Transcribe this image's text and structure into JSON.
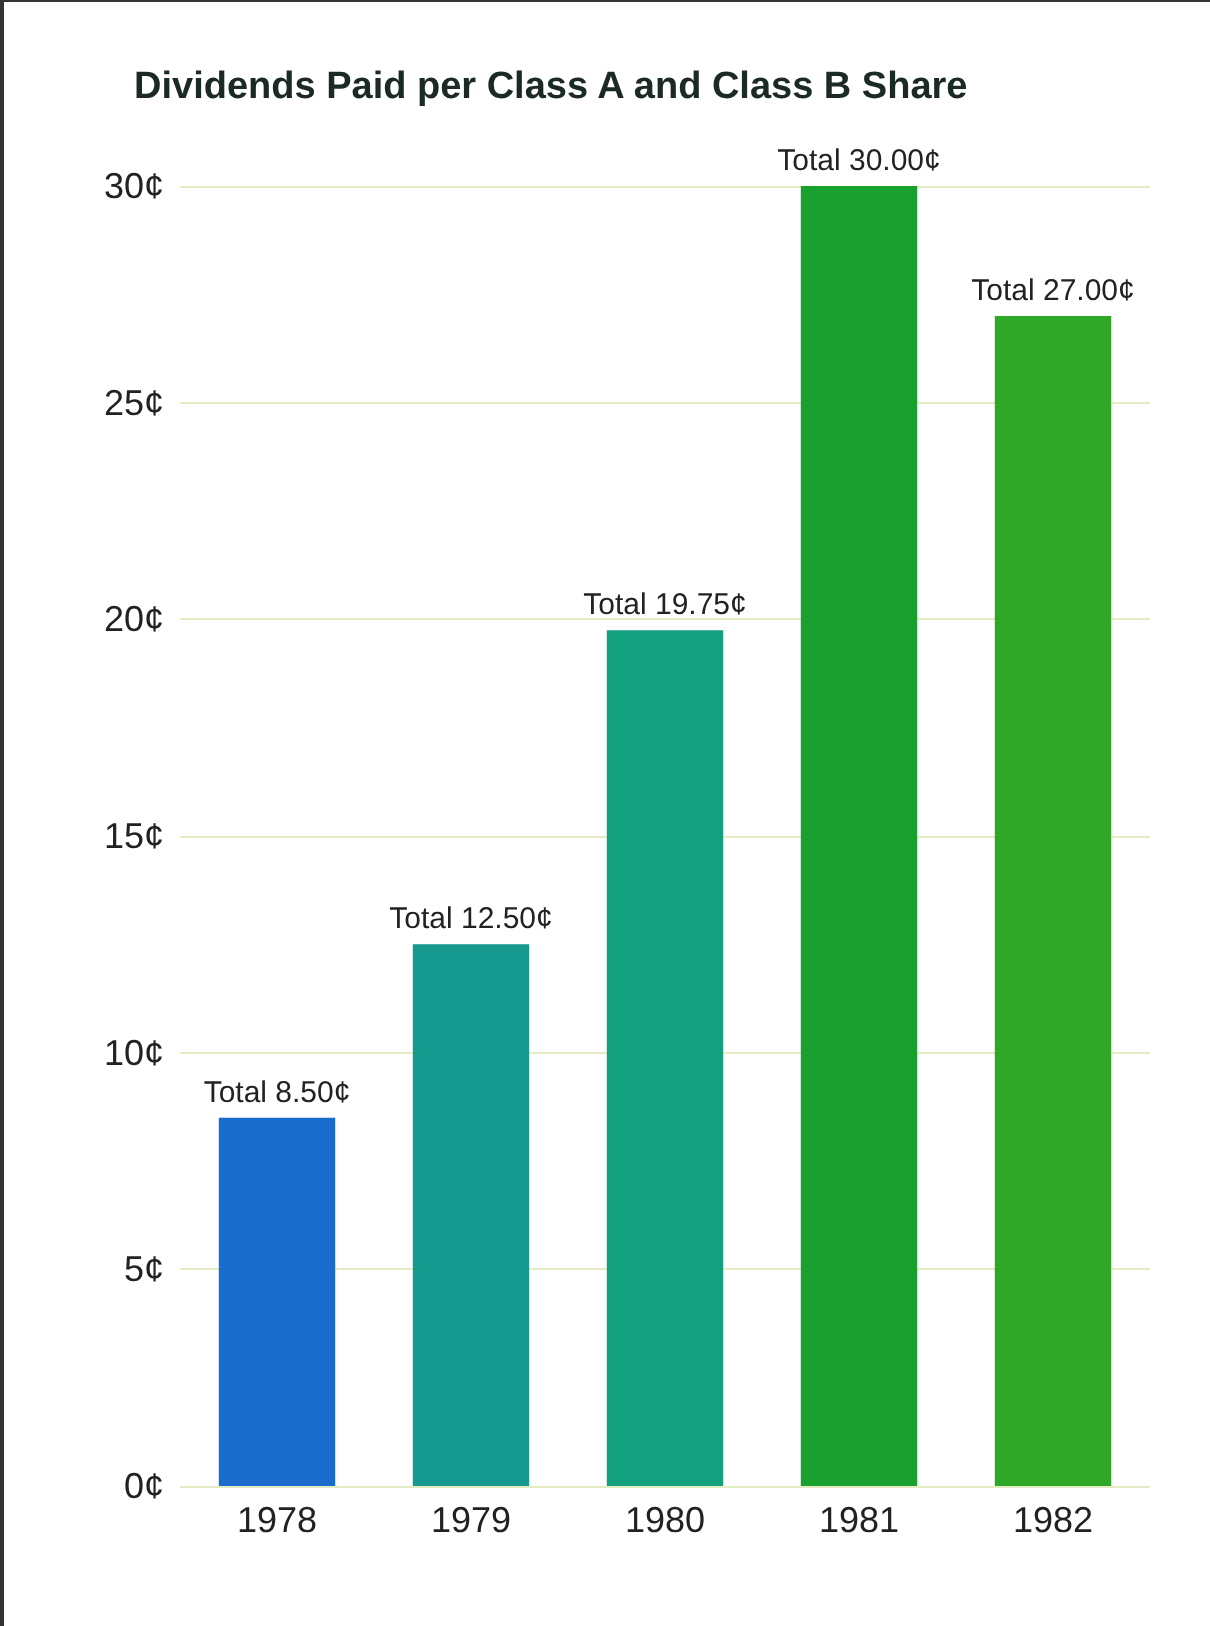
{
  "chart_data": {
    "type": "bar",
    "title": "Dividends Paid per Class A and Class B Share",
    "categories": [
      "1978",
      "1979",
      "1980",
      "1981",
      "1982"
    ],
    "values": [
      8.5,
      12.5,
      19.75,
      30,
      27
    ],
    "value_labels": [
      "Total 8.50¢",
      "Total 12.50¢",
      "Total 19.75¢",
      "Total 30.00¢",
      "Total 27.00¢"
    ],
    "colors": [
      "#1a6ccc",
      "#16998f",
      "#13a07e",
      "#1aa02e",
      "#2ea826"
    ],
    "ylim": [
      0,
      30
    ],
    "yticks": [
      {
        "value": 0,
        "label": "0¢"
      },
      {
        "value": 5,
        "label": "5¢"
      },
      {
        "value": 10,
        "label": "10¢"
      },
      {
        "value": 15,
        "label": "15¢"
      },
      {
        "value": 20,
        "label": "20¢"
      },
      {
        "value": 25,
        "label": "25¢"
      },
      {
        "value": 30,
        "label": "30¢"
      }
    ],
    "grid": "y"
  }
}
